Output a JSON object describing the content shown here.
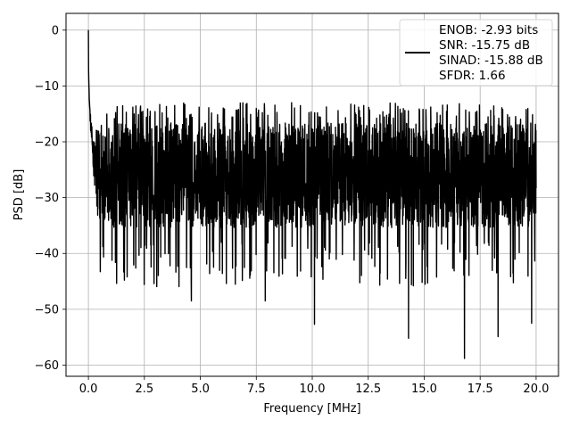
{
  "chart_data": {
    "type": "line",
    "title": "",
    "xlabel": "Frequency [MHz]",
    "ylabel": "PSD [dB]",
    "xlim": [
      -1.0,
      21.0
    ],
    "ylim": [
      -62.0,
      3.0
    ],
    "grid": true,
    "legend_position": "top-right",
    "x_ticks": [
      0.0,
      2.5,
      5.0,
      7.5,
      10.0,
      12.5,
      15.0,
      17.5,
      20.0
    ],
    "x_tick_labels": [
      "0.0",
      "2.5",
      "5.0",
      "7.5",
      "10.0",
      "12.5",
      "15.0",
      "17.5",
      "20.0"
    ],
    "y_ticks": [
      0,
      -10,
      -20,
      -30,
      -40,
      -50,
      -60
    ],
    "y_tick_labels": [
      "0",
      "−10",
      "−20",
      "−30",
      "−40",
      "−50",
      "−60"
    ],
    "legend": {
      "entries": [
        "ENOB: -2.93 bits",
        "SNR: -15.75 dB",
        "SINAD: -15.88 dB",
        "SFDR: 1.66"
      ]
    },
    "series": [
      {
        "color": "#000000",
        "x_range": [
          0.0,
          20.0
        ],
        "noise_floor_db": -26,
        "noise_spread_db": [
          -38,
          -13
        ],
        "peak": {
          "x": 0.0,
          "y": 0.0
        },
        "notable_dips": [
          {
            "x": 4.6,
            "y": -48.5
          },
          {
            "x": 7.9,
            "y": -48.5
          },
          {
            "x": 10.1,
            "y": -52.7
          },
          {
            "x": 14.3,
            "y": -55.2
          },
          {
            "x": 16.8,
            "y": -58.8
          },
          {
            "x": 18.3,
            "y": -54.9
          },
          {
            "x": 19.8,
            "y": -52.5
          }
        ]
      }
    ]
  }
}
